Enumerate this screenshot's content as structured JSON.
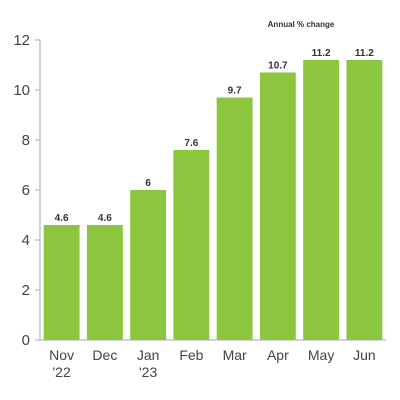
{
  "chart_data": {
    "type": "bar",
    "subtitle": "Annual % change",
    "categories": [
      [
        "Nov",
        "'22"
      ],
      [
        "Dec"
      ],
      [
        "Jan",
        "'23"
      ],
      [
        "Feb"
      ],
      [
        "Mar"
      ],
      [
        "Apr"
      ],
      [
        "May"
      ],
      [
        "Jun"
      ]
    ],
    "values": [
      4.6,
      4.6,
      6,
      7.6,
      9.7,
      10.7,
      11.2,
      11.2
    ],
    "data_labels": [
      "4.6",
      "4.6",
      "6",
      "7.6",
      "9.7",
      "10.7",
      "11.2",
      "11.2"
    ],
    "yticks": [
      "0",
      "2",
      "4",
      "6",
      "8",
      "10",
      "12"
    ],
    "ylim": [
      0,
      12
    ],
    "grid": false,
    "bar_color": "#8cc63f",
    "axis_color": "#aaaaaa"
  }
}
